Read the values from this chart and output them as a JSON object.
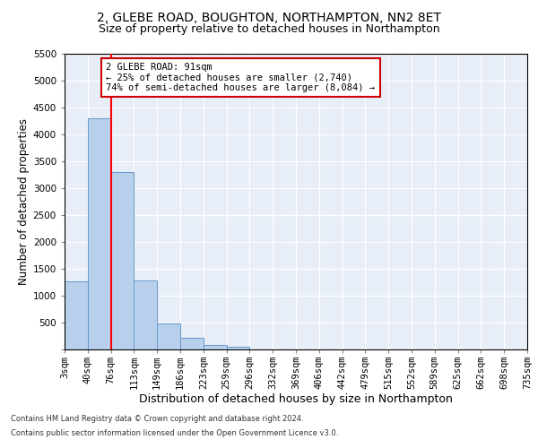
{
  "title1": "2, GLEBE ROAD, BOUGHTON, NORTHAMPTON, NN2 8ET",
  "title2": "Size of property relative to detached houses in Northampton",
  "xlabel": "Distribution of detached houses by size in Northampton",
  "ylabel": "Number of detached properties",
  "bar_values": [
    1270,
    4300,
    3300,
    1290,
    490,
    210,
    80,
    55,
    0,
    0,
    0,
    0,
    0,
    0,
    0,
    0,
    0,
    0,
    0,
    0
  ],
  "bar_labels": [
    "3sqm",
    "40sqm",
    "76sqm",
    "113sqm",
    "149sqm",
    "186sqm",
    "223sqm",
    "259sqm",
    "296sqm",
    "332sqm",
    "369sqm",
    "406sqm",
    "442sqm",
    "479sqm",
    "515sqm",
    "552sqm",
    "589sqm",
    "625sqm",
    "662sqm",
    "698sqm",
    "735sqm"
  ],
  "bar_color": "#b8d0eb",
  "bar_edge_color": "#6699cc",
  "annotation_text": "2 GLEBE ROAD: 91sqm\n← 25% of detached houses are smaller (2,740)\n74% of semi-detached houses are larger (8,084) →",
  "annotation_box_color": "#ffffff",
  "annotation_box_edge": "#cc0000",
  "footer1": "Contains HM Land Registry data © Crown copyright and database right 2024.",
  "footer2": "Contains public sector information licensed under the Open Government Licence v3.0.",
  "ylim": [
    0,
    5500
  ],
  "yticks": [
    0,
    500,
    1000,
    1500,
    2000,
    2500,
    3000,
    3500,
    4000,
    4500,
    5000,
    5500
  ],
  "bg_color": "#e8eef7",
  "red_line_x": 2.0,
  "title1_fontsize": 10,
  "title2_fontsize": 9,
  "xlabel_fontsize": 9,
  "ylabel_fontsize": 8.5,
  "tick_fontsize": 7.5,
  "footer_fontsize": 6.0
}
